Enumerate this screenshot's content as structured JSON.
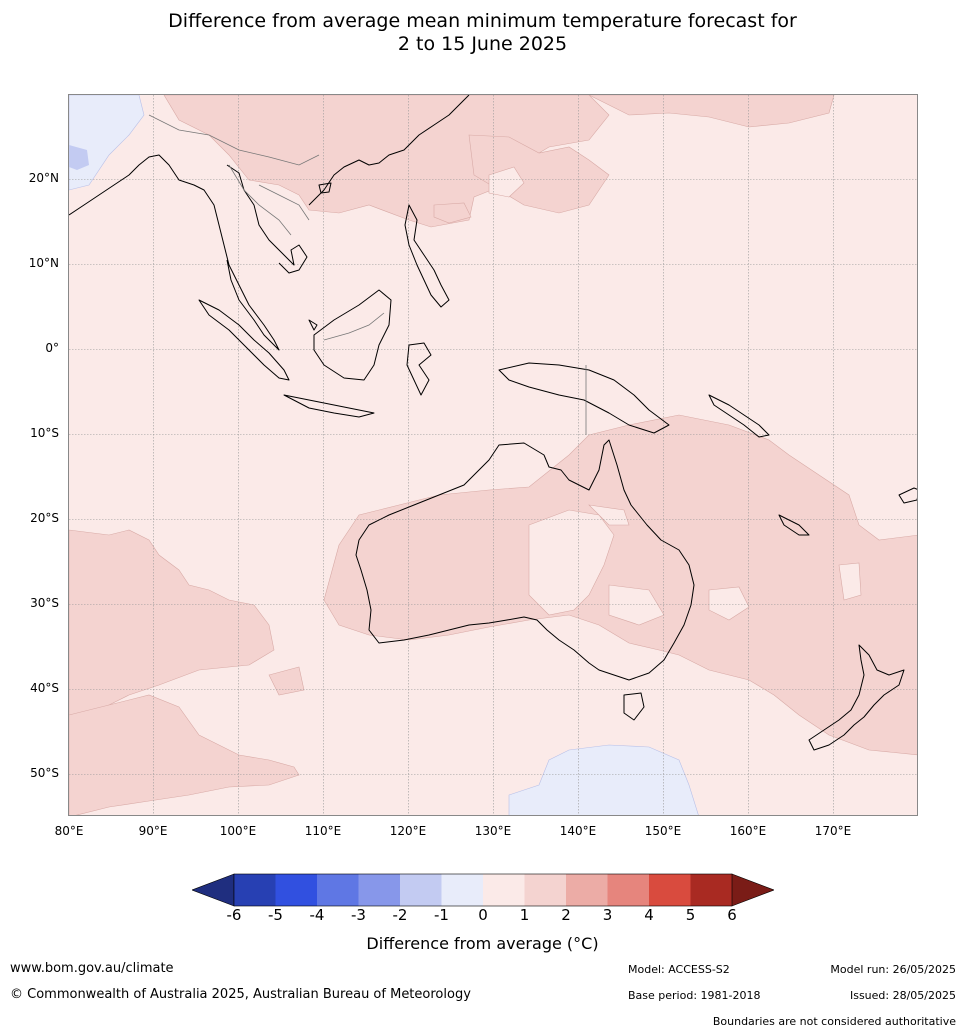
{
  "title": {
    "line1": "Difference from average mean minimum temperature forecast for",
    "line2": "2 to 15 June 2025"
  },
  "map": {
    "lat_labels": [
      "20°N",
      "10°N",
      "0°",
      "10°S",
      "20°S",
      "30°S",
      "40°S",
      "50°S"
    ],
    "lon_labels": [
      "80°E",
      "90°E",
      "100°E",
      "110°E",
      "120°E",
      "130°E",
      "140°E",
      "150°E",
      "160°E",
      "170°E"
    ],
    "lon_range": [
      80,
      180
    ],
    "lat_range": [
      -55,
      30
    ],
    "colors": {
      "bin_0_1": "#fbeae8",
      "bin_1_2": "#f4d3d0",
      "bin_m1_0": "#e8ecfa",
      "bin_m2_m1": "#c3cbf2",
      "coast": "#000000",
      "border": "#777777",
      "grid": "#9a9a9a"
    }
  },
  "colorbar": {
    "ticks": [
      "-6",
      "-5",
      "-4",
      "-3",
      "-2",
      "-1",
      "0",
      "1",
      "2",
      "3",
      "4",
      "5",
      "6"
    ],
    "colors": [
      "#1f2e7f",
      "#2740b3",
      "#3150e0",
      "#5f77e4",
      "#8797ea",
      "#c3cbf2",
      "#e8ecfa",
      "#fbeae8",
      "#f4d3d0",
      "#ecaca6",
      "#e6857d",
      "#d94b3e",
      "#a92a22",
      "#7a1c17"
    ],
    "label": "Difference from average (",
    "unit": "°C)"
  },
  "footer": {
    "website": "www.bom.gov.au/climate",
    "copyright": "© Commonwealth of Australia 2025, Australian Bureau of Meteorology",
    "model": "Model: ACCESS-S2",
    "base_period": "Base period: 1981-2018",
    "model_run": "Model run: 26/05/2025",
    "issued": "Issued: 28/05/2025",
    "disclaimer": "Boundaries are not considered authoritative"
  }
}
